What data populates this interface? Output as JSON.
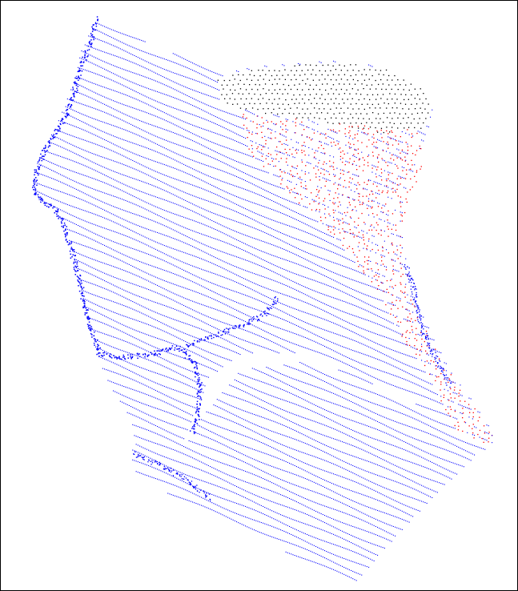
{
  "figure": {
    "description_label": "",
    "colors": {
      "frame_border": "#000000",
      "background": "#ffffff",
      "scan_primary": "#0000ff",
      "scan_secondary": "#ff0000",
      "scan_back": "#000000"
    },
    "layers": [
      {
        "name": "back-of-head-points",
        "color_key": "scan_back"
      },
      {
        "name": "red-scan-points",
        "color_key": "scan_secondary"
      },
      {
        "name": "blue-scan-lines",
        "color_key": "scan_primary"
      },
      {
        "name": "face-profile-outline",
        "color_key": "scan_primary"
      }
    ]
  }
}
